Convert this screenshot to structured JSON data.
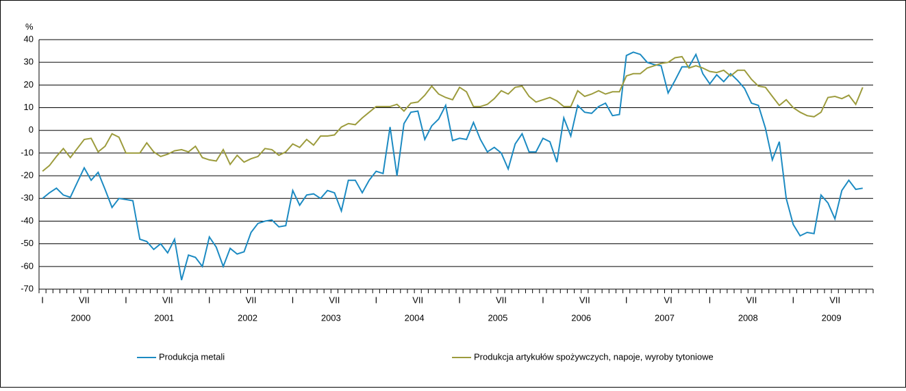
{
  "chart_data": {
    "type": "line",
    "y_unit": "%",
    "categories": [
      "I",
      null,
      null,
      null,
      null,
      null,
      "VII",
      null,
      null,
      null,
      null,
      null,
      "I",
      null,
      null,
      null,
      null,
      null,
      "VII",
      null,
      null,
      null,
      null,
      null,
      "I",
      null,
      null,
      null,
      null,
      null,
      "VII",
      null,
      null,
      null,
      null,
      null,
      "I",
      null,
      null,
      null,
      null,
      null,
      "VII",
      null,
      null,
      null,
      null,
      null,
      "I",
      null,
      null,
      null,
      null,
      null,
      "VII",
      null,
      null,
      null,
      null,
      null,
      "I",
      null,
      null,
      null,
      null,
      null,
      "VII",
      null,
      null,
      null,
      null,
      null,
      "I",
      null,
      null,
      null,
      null,
      null,
      "VII",
      null,
      null,
      null,
      null,
      null,
      "I",
      null,
      null,
      null,
      null,
      null,
      "VI",
      null,
      null,
      null,
      null,
      null,
      "I",
      null,
      null,
      null,
      null,
      null,
      "VII",
      null,
      null,
      null,
      null,
      null,
      "I",
      null,
      null,
      null,
      null,
      null,
      "VII",
      null,
      null,
      null,
      null
    ],
    "years": [
      "2000",
      "2001",
      "2002",
      "2003",
      "2004",
      "2005",
      "2006",
      "2007",
      "2008",
      "2009"
    ],
    "series": [
      {
        "name": "Produkcja metali",
        "color": "#1b8ac2",
        "values": [
          -30,
          -27.5,
          -25.5,
          -28.5,
          -29.5,
          -23,
          -16.5,
          -22,
          -18.5,
          -26,
          -34,
          -30,
          -30.5,
          -31,
          -48,
          -49,
          -52.5,
          -50,
          -54,
          -48,
          -66,
          -55,
          -56,
          -60,
          -47,
          -51.5,
          -60,
          -52,
          -54.5,
          -53.5,
          -45,
          -41,
          -40,
          -39.5,
          -42.5,
          -42,
          -26.5,
          -33,
          -28.5,
          -28,
          -30,
          -26.5,
          -27.5,
          -35.5,
          -22,
          -22,
          -27.5,
          -22,
          -18,
          -19,
          1.5,
          -20,
          3,
          8,
          8.5,
          -4,
          2,
          5,
          11,
          -4.5,
          -3.5,
          -4,
          3.5,
          -4,
          -9.5,
          -7.5,
          -10,
          -17,
          -6,
          -1.5,
          -9.5,
          -9.5,
          -3.5,
          -5,
          -14,
          5.5,
          -2.5,
          11,
          8,
          7.5,
          10.5,
          12,
          6.5,
          7,
          33,
          34.5,
          33.5,
          30,
          29,
          28.5,
          16.5,
          22,
          28,
          28,
          33.5,
          25,
          20.5,
          24.5,
          21.5,
          25,
          22,
          18.5,
          12,
          11,
          1,
          -13,
          -5,
          -30,
          -41.5,
          -46.5,
          -45,
          -45.5,
          -28.5,
          -32,
          -39,
          -26.5,
          -22,
          -26,
          -25.5
        ]
      },
      {
        "name": "Produkcja artykułów spożywczych, napoje, wyroby tytoniowe",
        "color": "#9c9b3c",
        "values": [
          -18,
          -15.5,
          -11.5,
          -8,
          -12,
          -8,
          -4,
          -3.5,
          -9.5,
          -7,
          -1.5,
          -3,
          -10,
          -10,
          -10,
          -5.5,
          -9.5,
          -11.5,
          -10.5,
          -9,
          -8.5,
          -9.5,
          -7,
          -12,
          -13,
          -13.5,
          -8.5,
          -15,
          -11,
          -14,
          -12.5,
          -11.5,
          -8,
          -8.5,
          -11,
          -9.5,
          -6,
          -7.5,
          -4,
          -6.5,
          -2.5,
          -2.5,
          -2,
          1.5,
          3,
          2.5,
          5.5,
          8,
          10.5,
          10.5,
          10.5,
          11.5,
          8.5,
          12,
          12.5,
          15.5,
          19.5,
          16,
          14.5,
          13.5,
          19,
          17,
          10.5,
          10.5,
          11.5,
          14,
          17.5,
          16,
          19,
          19.5,
          15,
          12.5,
          13.5,
          14.5,
          13,
          10.5,
          10.5,
          17.5,
          15,
          16,
          17.5,
          16,
          17,
          17,
          24,
          25,
          25,
          27.5,
          28.5,
          29.5,
          30,
          32,
          32.5,
          27.5,
          28.5,
          27.5,
          26,
          25.5,
          26.5,
          24,
          26.5,
          26.5,
          22.5,
          19.5,
          19,
          15,
          11,
          13.5,
          10,
          8,
          6.5,
          6,
          8,
          14.5,
          15,
          14,
          15.5,
          11.5,
          19
        ]
      }
    ],
    "ylim": [
      -70,
      40
    ],
    "yticks": [
      -70,
      -60,
      -50,
      -40,
      -30,
      -20,
      -10,
      0,
      10,
      20,
      30,
      40
    ],
    "grid": true
  }
}
